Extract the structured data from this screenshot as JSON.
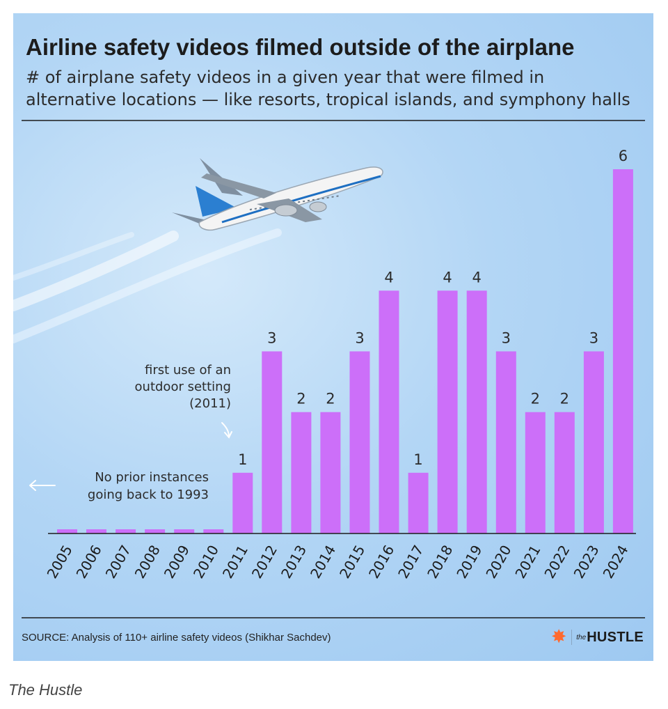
{
  "header": {
    "title": "Airline safety videos filmed outside of the airplane",
    "subtitle": "# of airplane safety videos in a given year that were filmed in alternative locations — like resorts, tropical islands, and symphony halls"
  },
  "chart_data": {
    "type": "bar",
    "categories": [
      "2005",
      "2006",
      "2007",
      "2008",
      "2009",
      "2010",
      "2011",
      "2012",
      "2013",
      "2014",
      "2015",
      "2016",
      "2017",
      "2018",
      "2019",
      "2020",
      "2021",
      "2022",
      "2023",
      "2024"
    ],
    "values": [
      0,
      0,
      0,
      0,
      0,
      0,
      1,
      3,
      2,
      2,
      3,
      4,
      1,
      4,
      4,
      3,
      2,
      2,
      3,
      6
    ],
    "data_labels": [
      "",
      "",
      "",
      "",
      "",
      "",
      "1",
      "3",
      "2",
      "2",
      "3",
      "4",
      "1",
      "4",
      "4",
      "3",
      "2",
      "2",
      "3",
      "6"
    ],
    "ylim": [
      0,
      6
    ],
    "grid": false,
    "bar_color": "#cc6ff9",
    "annotations": {
      "first_outdoor": [
        "first use of an",
        "outdoor setting",
        "(2011)"
      ],
      "no_prior": [
        "No prior instances",
        "going back to 1993"
      ]
    }
  },
  "footer": {
    "source": "SOURCE: Analysis of 110+ airline safety videos (Shikhar Sachdev)",
    "logo_icon": "hubspot-sprocket-icon",
    "logo_the": "the",
    "logo_main": "HUSTLE"
  },
  "caption": "The Hustle",
  "colors": {
    "background": "#b3d6f5",
    "bar": "#cc6ff9",
    "text": "#1c1c1c",
    "accent": "#ff6a2f"
  }
}
